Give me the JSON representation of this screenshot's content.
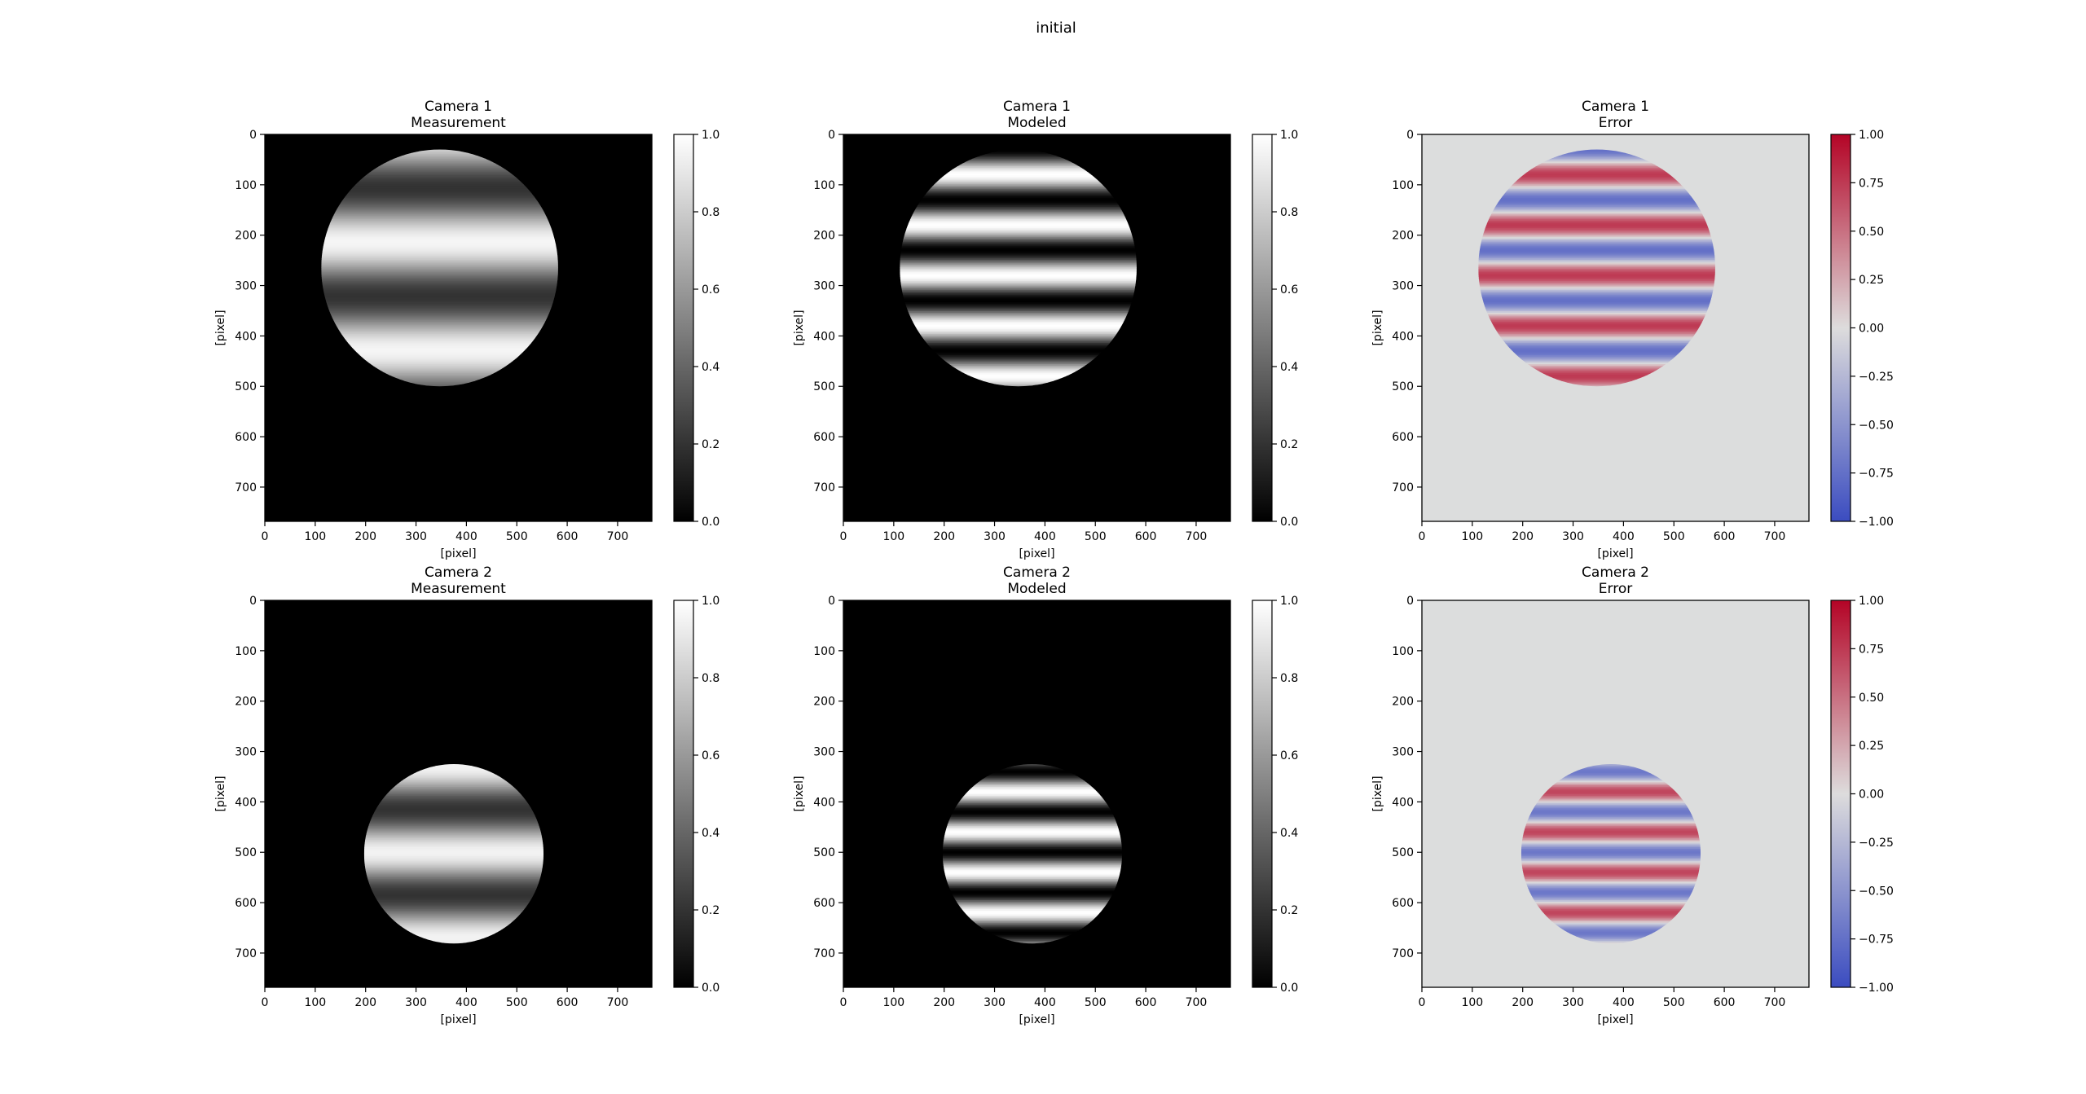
{
  "figure": {
    "suptitle": "initial"
  },
  "colors": {
    "background": "#ffffff",
    "frame": "#000000",
    "measurement_dim": "#1e1e1e",
    "error_background": "#dcdddd",
    "coolwarm_low": "#3b4cc0",
    "coolwarm_mid": "#dddcdc",
    "coolwarm_high": "#b40426"
  },
  "chart_data": [
    {
      "type": "heatmap",
      "panel": "camera1-measurement",
      "title": "Camera 1",
      "subtitle": "Measurement",
      "xlabel": "[pixel]",
      "ylabel": "[pixel]",
      "xlim": [
        0,
        768
      ],
      "ylim": [
        768,
        0
      ],
      "xticks": [
        0,
        100,
        200,
        300,
        400,
        500,
        600,
        700
      ],
      "yticks": [
        0,
        100,
        200,
        300,
        400,
        500,
        600,
        700
      ],
      "colormap": "gray",
      "clim": [
        0,
        1
      ],
      "colorbar_ticks": [
        "0.0",
        "0.2",
        "0.4",
        "0.6",
        "0.8",
        "1.0"
      ],
      "disc": {
        "cx": 347,
        "cy": 265,
        "r": 235
      },
      "pattern": {
        "period": 215,
        "phase_y": 214,
        "min": 0.2,
        "max": 0.96
      }
    },
    {
      "type": "heatmap",
      "panel": "camera1-modeled",
      "title": "Camera 1",
      "subtitle": "Modeled",
      "xlabel": "[pixel]",
      "ylabel": "[pixel]",
      "xlim": [
        0,
        768
      ],
      "ylim": [
        768,
        0
      ],
      "xticks": [
        0,
        100,
        200,
        300,
        400,
        500,
        600,
        700
      ],
      "yticks": [
        0,
        100,
        200,
        300,
        400,
        500,
        600,
        700
      ],
      "colormap": "gray",
      "clim": [
        0,
        1
      ],
      "colorbar_ticks": [
        "0.0",
        "0.2",
        "0.4",
        "0.6",
        "0.8",
        "1.0"
      ],
      "disc": {
        "cx": 347,
        "cy": 265,
        "r": 235
      },
      "pattern": {
        "period": 100,
        "phase_y": 80,
        "min": 0.0,
        "max": 1.0
      }
    },
    {
      "type": "heatmap",
      "panel": "camera1-error",
      "title": "Camera 1",
      "subtitle": "Error",
      "xlabel": "[pixel]",
      "ylabel": "[pixel]",
      "xlim": [
        0,
        768
      ],
      "ylim": [
        768,
        0
      ],
      "xticks": [
        0,
        100,
        200,
        300,
        400,
        500,
        600,
        700
      ],
      "yticks": [
        0,
        100,
        200,
        300,
        400,
        500,
        600,
        700
      ],
      "colormap": "coolwarm",
      "clim": [
        -1,
        1
      ],
      "colorbar_ticks": [
        "−1.00",
        "−0.75",
        "−0.50",
        "−0.25",
        "0.00",
        "0.25",
        "0.50",
        "0.75",
        "1.00"
      ],
      "disc": {
        "cx": 347,
        "cy": 265,
        "r": 235
      },
      "pattern": {
        "period": 100,
        "phase_y": 80,
        "min": -0.75,
        "max": 0.75
      }
    },
    {
      "type": "heatmap",
      "panel": "camera2-measurement",
      "title": "Camera 2",
      "subtitle": "Measurement",
      "xlabel": "[pixel]",
      "ylabel": "[pixel]",
      "xlim": [
        0,
        768
      ],
      "ylim": [
        768,
        0
      ],
      "xticks": [
        0,
        100,
        200,
        300,
        400,
        500,
        600,
        700
      ],
      "yticks": [
        0,
        100,
        200,
        300,
        400,
        500,
        600,
        700
      ],
      "colormap": "gray",
      "clim": [
        0,
        1
      ],
      "colorbar_ticks": [
        "0.0",
        "0.2",
        "0.4",
        "0.6",
        "0.8",
        "1.0"
      ],
      "disc": {
        "cx": 375,
        "cy": 503,
        "r": 178
      },
      "pattern": {
        "period": 170,
        "phase_y": 500,
        "min": 0.2,
        "max": 0.95
      }
    },
    {
      "type": "heatmap",
      "panel": "camera2-modeled",
      "title": "Camera 2",
      "subtitle": "Modeled",
      "xlabel": "[pixel]",
      "ylabel": "[pixel]",
      "xlim": [
        0,
        768
      ],
      "ylim": [
        768,
        0
      ],
      "xticks": [
        0,
        100,
        200,
        300,
        400,
        500,
        600,
        700
      ],
      "yticks": [
        0,
        100,
        200,
        300,
        400,
        500,
        600,
        700
      ],
      "colormap": "gray",
      "clim": [
        0,
        1
      ],
      "colorbar_ticks": [
        "0.0",
        "0.2",
        "0.4",
        "0.6",
        "0.8",
        "1.0"
      ],
      "disc": {
        "cx": 375,
        "cy": 503,
        "r": 178
      },
      "pattern": {
        "period": 80,
        "phase_y": 380,
        "min": 0.0,
        "max": 1.0
      }
    },
    {
      "type": "heatmap",
      "panel": "camera2-error",
      "title": "Camera 2",
      "subtitle": "Error",
      "xlabel": "[pixel]",
      "ylabel": "[pixel]",
      "xlim": [
        0,
        768
      ],
      "ylim": [
        768,
        0
      ],
      "xticks": [
        0,
        100,
        200,
        300,
        400,
        500,
        600,
        700
      ],
      "yticks": [
        0,
        100,
        200,
        300,
        400,
        500,
        600,
        700
      ],
      "colormap": "coolwarm",
      "clim": [
        -1,
        1
      ],
      "colorbar_ticks": [
        "−1.00",
        "−0.75",
        "−0.50",
        "−0.25",
        "0.00",
        "0.25",
        "0.50",
        "0.75",
        "1.00"
      ],
      "disc": {
        "cx": 375,
        "cy": 503,
        "r": 178
      },
      "pattern": {
        "period": 80,
        "phase_y": 380,
        "min": -0.7,
        "max": 0.7
      }
    }
  ]
}
